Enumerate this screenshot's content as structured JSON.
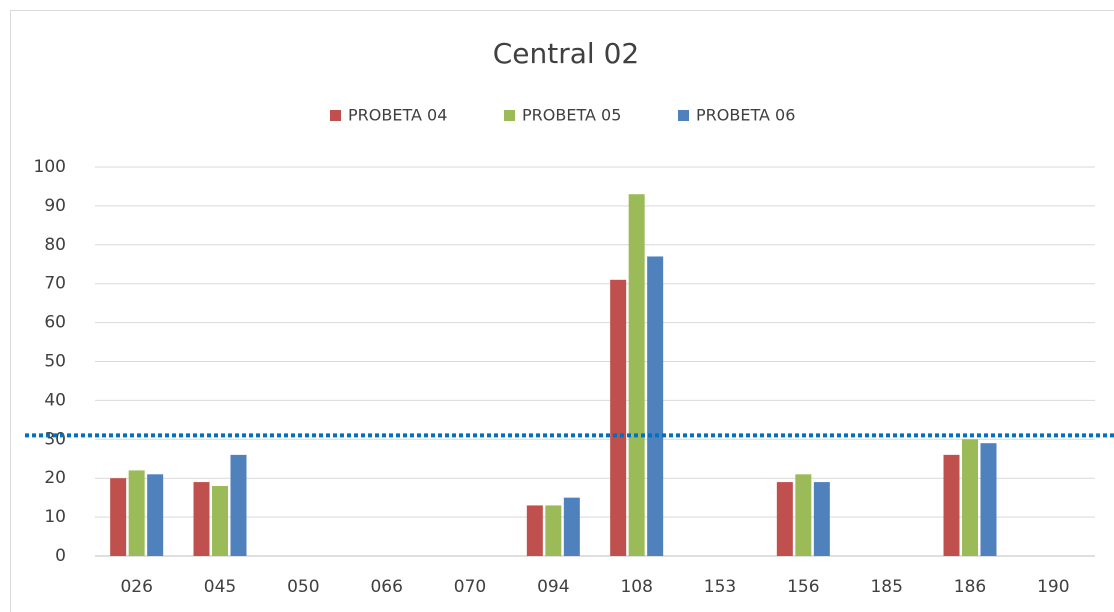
{
  "chart_data": {
    "type": "bar",
    "title": "Central 02",
    "categories": [
      "026",
      "045",
      "050",
      "066",
      "070",
      "094",
      "108",
      "153",
      "156",
      "185",
      "186",
      "190"
    ],
    "series": [
      {
        "name": "PROBETA 04",
        "color": "#c0504d",
        "values": [
          20,
          19,
          null,
          null,
          null,
          13,
          71,
          null,
          19,
          null,
          26,
          null
        ]
      },
      {
        "name": "PROBETA 05",
        "color": "#9bbb59",
        "values": [
          22,
          18,
          null,
          null,
          null,
          13,
          93,
          null,
          21,
          null,
          30,
          null
        ]
      },
      {
        "name": "PROBETA 06",
        "color": "#4f81bd",
        "values": [
          21,
          26,
          null,
          null,
          null,
          15,
          77,
          null,
          19,
          null,
          29,
          null
        ]
      }
    ],
    "reference_line": 31,
    "reference_color": "#0070c0",
    "ylim": [
      0,
      100
    ],
    "yticks": [
      0,
      10,
      20,
      30,
      40,
      50,
      60,
      70,
      80,
      90,
      100
    ],
    "grid": true,
    "legend": "top"
  }
}
